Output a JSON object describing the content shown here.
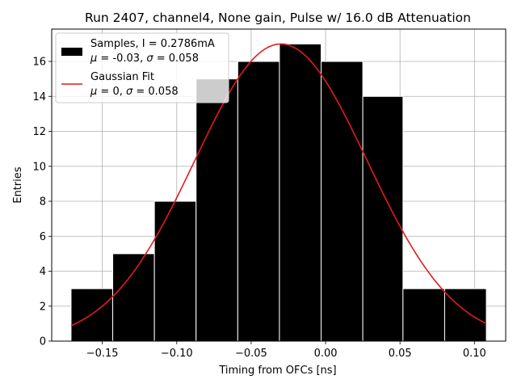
{
  "chart_data": {
    "type": "histogram",
    "title": "Run 2407, channel4, None gain, Pulse w/ 16.0 dB Attenuation",
    "xlabel": "Timing from OFCs [ns]",
    "ylabel": "Entries",
    "xlim": [
      -0.184,
      0.121
    ],
    "ylim": [
      0,
      17.85
    ],
    "x_ticks": [
      -0.15,
      -0.1,
      -0.05,
      0.0,
      0.05,
      0.1
    ],
    "x_tick_labels": [
      "−0.15",
      "−0.10",
      "−0.05",
      "0.00",
      "0.05",
      "0.10"
    ],
    "y_ticks": [
      0,
      2,
      4,
      6,
      8,
      10,
      12,
      14,
      16
    ],
    "y_tick_labels": [
      "0",
      "2",
      "4",
      "6",
      "8",
      "10",
      "12",
      "14",
      "16"
    ],
    "grid": true,
    "legend_position": "upper-left",
    "bins": [
      {
        "x0": -0.171,
        "x1": -0.143,
        "count": 3
      },
      {
        "x0": -0.143,
        "x1": -0.115,
        "count": 5
      },
      {
        "x0": -0.115,
        "x1": -0.087,
        "count": 8
      },
      {
        "x0": -0.087,
        "x1": -0.059,
        "count": 15
      },
      {
        "x0": -0.059,
        "x1": -0.031,
        "count": 16
      },
      {
        "x0": -0.031,
        "x1": -0.003,
        "count": 17
      },
      {
        "x0": -0.003,
        "x1": 0.025,
        "count": 16
      },
      {
        "x0": 0.025,
        "x1": 0.052,
        "count": 14
      },
      {
        "x0": 0.052,
        "x1": 0.08,
        "count": 3
      },
      {
        "x0": 0.08,
        "x1": 0.108,
        "count": 3
      }
    ],
    "histogram_color": "#000000",
    "fit_color": "#e41a1c",
    "fit": {
      "amplitude": 17.0,
      "mean": -0.03,
      "sigma": 0.058,
      "x_range": [
        -0.171,
        0.108
      ]
    },
    "legend": {
      "samples_line1": "Samples, I = 0.2786mA",
      "samples_mu": "μ",
      "samples_mu_val": " = -0.03, ",
      "samples_sigma": "σ",
      "samples_sigma_val": " = 0.058",
      "fit_line1": "Gaussian Fit",
      "fit_mu": "μ",
      "fit_mu_val": " = 0, ",
      "fit_sigma": "σ",
      "fit_sigma_val": " = 0.058"
    }
  }
}
